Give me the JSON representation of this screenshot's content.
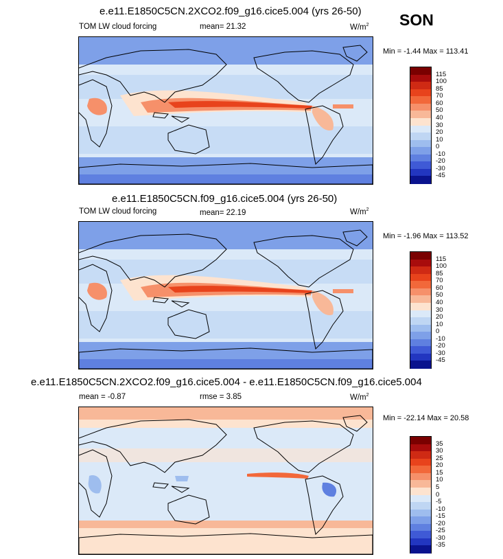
{
  "season": "SON",
  "units": "W/m",
  "units_sup": "2",
  "panels": [
    {
      "title": "e.e11.E1850C5CN.2XCO2.f09_g16.cice5.004 (yrs 26-50)",
      "left_label": "TOM LW cloud forcing",
      "center_label": "mean=  21.32",
      "minmax": "Min =  -1.44 Max = 113.41",
      "colorbar_labels": [
        "115",
        "100",
        "85",
        "70",
        "60",
        "50",
        "40",
        "30",
        "20",
        "10",
        "0",
        "-10",
        "-20",
        "-30",
        "-45"
      ],
      "colors": [
        "#7a0000",
        "#a80c0c",
        "#cf2a14",
        "#e8431c",
        "#f2683a",
        "#f6906a",
        "#f8b898",
        "#fde3cf",
        "#dbe9f8",
        "#bfd6f3",
        "#9ebdee",
        "#7ea0e8",
        "#5f80e0",
        "#3f5ad6",
        "#2236c0",
        "#0a138e"
      ]
    },
    {
      "title": "e.e11.E1850C5CN.f09_g16.cice5.004 (yrs 26-50)",
      "left_label": "TOM LW cloud forcing",
      "center_label": "mean=  22.19",
      "minmax": "Min =  -1.96 Max = 113.52",
      "colorbar_labels": [
        "115",
        "100",
        "85",
        "70",
        "60",
        "50",
        "40",
        "30",
        "20",
        "10",
        "0",
        "-10",
        "-20",
        "-30",
        "-45"
      ],
      "colors": [
        "#7a0000",
        "#a80c0c",
        "#cf2a14",
        "#e8431c",
        "#f2683a",
        "#f6906a",
        "#f8b898",
        "#fde3cf",
        "#dbe9f8",
        "#bfd6f3",
        "#9ebdee",
        "#7ea0e8",
        "#5f80e0",
        "#3f5ad6",
        "#2236c0",
        "#0a138e"
      ]
    },
    {
      "title": "e.e11.E1850C5CN.2XCO2.f09_g16.cice5.004 - e.e11.E1850C5CN.f09_g16.cice5.004",
      "left_label": "mean =  -0.87",
      "center_label": "rmse =   3.85",
      "minmax": "Min = -22.14 Max =  20.58",
      "colorbar_labels": [
        "35",
        "30",
        "25",
        "20",
        "15",
        "10",
        "5",
        "0",
        "-5",
        "-10",
        "-15",
        "-20",
        "-25",
        "-30",
        "-35"
      ],
      "colors": [
        "#7a0000",
        "#a80c0c",
        "#cf2a14",
        "#e8431c",
        "#f2683a",
        "#f6906a",
        "#f8b898",
        "#fde3cf",
        "#dbe9f8",
        "#bfd6f3",
        "#9ebdee",
        "#7ea0e8",
        "#5f80e0",
        "#3f5ad6",
        "#2236c0",
        "#0a138e"
      ]
    }
  ]
}
